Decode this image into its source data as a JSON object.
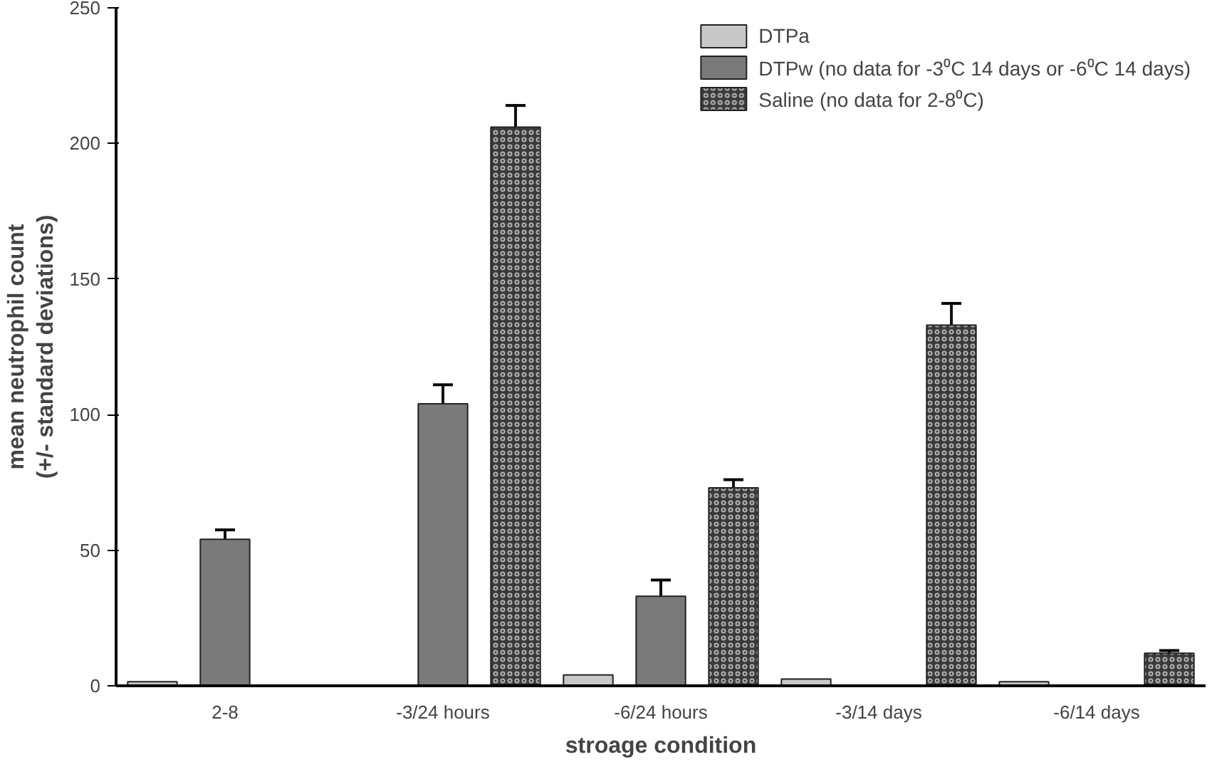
{
  "chart_data": {
    "type": "bar",
    "xlabel": "stroage condition",
    "ylabel": "mean neutrophil count\n(+/- standard deviations)",
    "categories": [
      "2-8",
      "-3/24 hours",
      "-6/24 hours",
      "-3/14 days",
      "-6/14 days"
    ],
    "series": [
      {
        "name": "DTPa",
        "color": "#c8c8c8",
        "values": [
          1.5,
          null,
          4,
          2.5,
          1.5
        ]
      },
      {
        "name": "DTPw (no data for -3⁰C 14 days or -6⁰C 14 days)",
        "color": "#7a7a7a",
        "values": [
          54,
          104,
          33,
          null,
          null
        ],
        "errors": [
          3.5,
          7,
          6,
          null,
          null
        ]
      },
      {
        "name": "Saline (no data for 2-8⁰C)",
        "color": "#3a3a3a",
        "values": [
          null,
          206,
          73,
          133,
          12
        ],
        "errors": [
          null,
          8,
          3,
          8,
          1
        ]
      }
    ],
    "ylim": [
      0,
      250
    ],
    "yticks": [
      0,
      50,
      100,
      150,
      200,
      250
    ],
    "grid": false,
    "legend": "top right"
  }
}
